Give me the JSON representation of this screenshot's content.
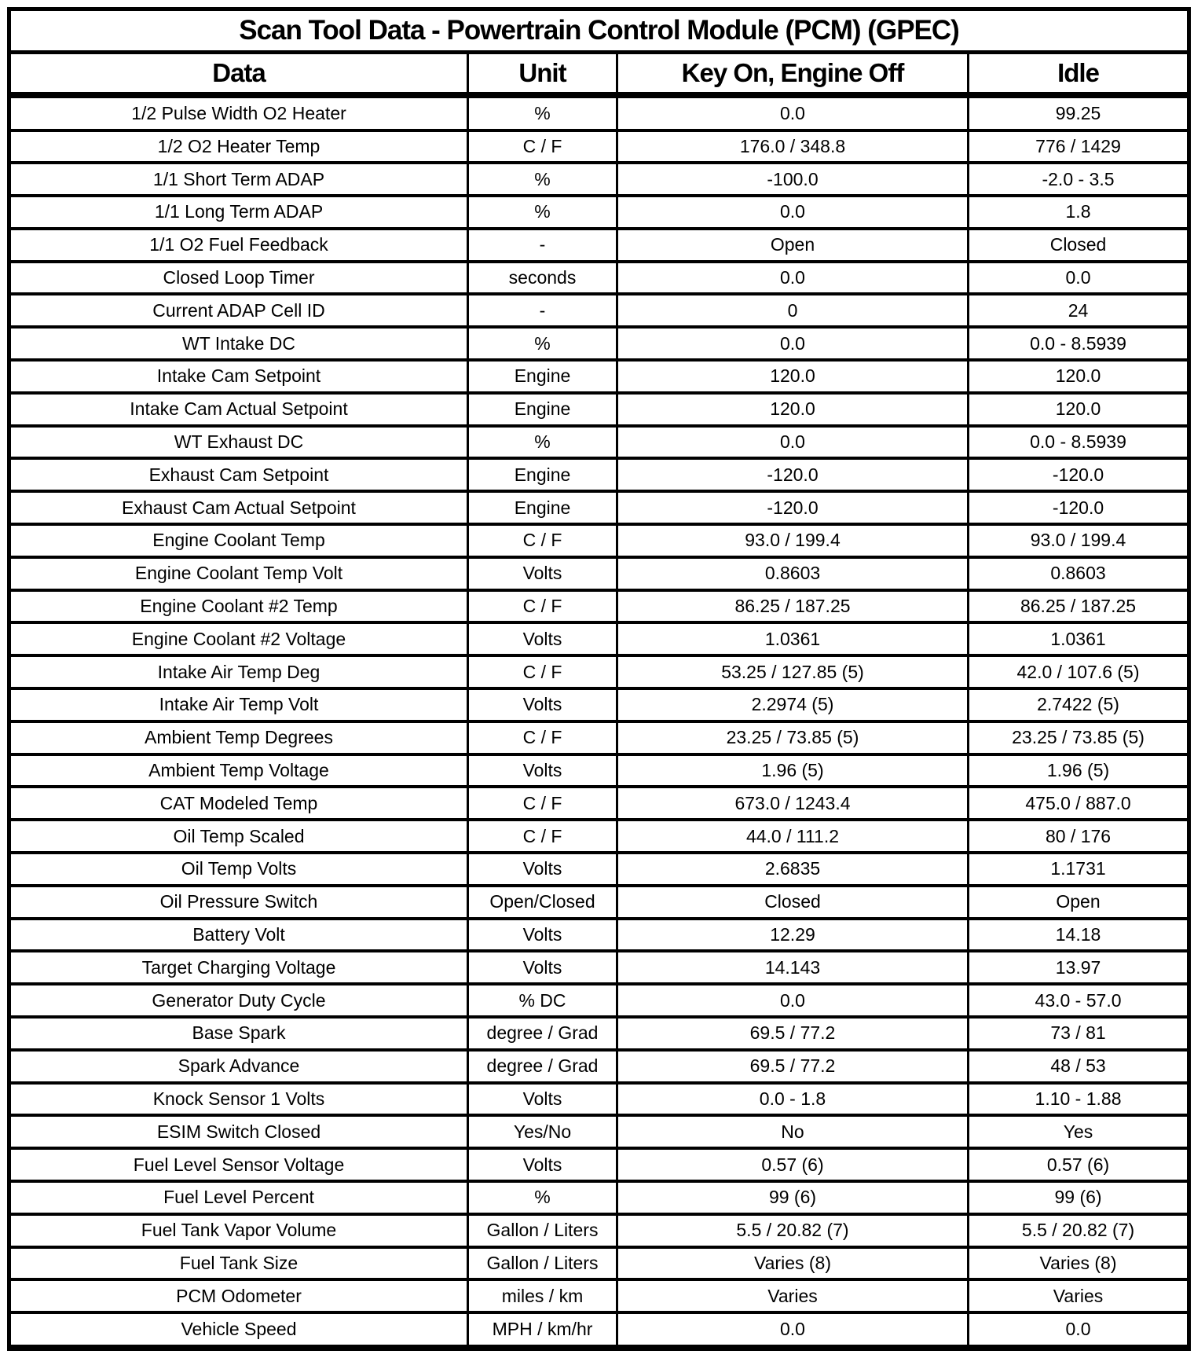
{
  "table": {
    "title": "Scan Tool Data - Powertrain Control Module (PCM) (GPEC)",
    "columns": [
      "Data",
      "Unit",
      "Key On, Engine Off",
      "Idle"
    ],
    "rows": [
      [
        "1/2 Pulse Width O2 Heater",
        "%",
        "0.0",
        "99.25"
      ],
      [
        "1/2 O2 Heater Temp",
        "C / F",
        "176.0 / 348.8",
        "776 / 1429"
      ],
      [
        "1/1 Short Term ADAP",
        "%",
        "-100.0",
        "-2.0 - 3.5"
      ],
      [
        "1/1 Long Term ADAP",
        "%",
        "0.0",
        "1.8"
      ],
      [
        "1/1 O2 Fuel Feedback",
        "-",
        "Open",
        "Closed"
      ],
      [
        "Closed Loop Timer",
        "seconds",
        "0.0",
        "0.0"
      ],
      [
        "Current ADAP Cell ID",
        "-",
        "0",
        "24"
      ],
      [
        "WT Intake DC",
        "%",
        "0.0",
        "0.0 - 8.5939"
      ],
      [
        "Intake Cam Setpoint",
        "Engine",
        "120.0",
        "120.0"
      ],
      [
        "Intake Cam Actual Setpoint",
        "Engine",
        "120.0",
        "120.0"
      ],
      [
        "WT Exhaust DC",
        "%",
        "0.0",
        "0.0 - 8.5939"
      ],
      [
        "Exhaust Cam Setpoint",
        "Engine",
        "-120.0",
        "-120.0"
      ],
      [
        "Exhaust Cam Actual Setpoint",
        "Engine",
        "-120.0",
        "-120.0"
      ],
      [
        "Engine Coolant Temp",
        "C / F",
        "93.0 / 199.4",
        "93.0 / 199.4"
      ],
      [
        "Engine Coolant Temp Volt",
        "Volts",
        "0.8603",
        "0.8603"
      ],
      [
        "Engine Coolant #2 Temp",
        "C / F",
        "86.25 / 187.25",
        "86.25 / 187.25"
      ],
      [
        "Engine Coolant #2 Voltage",
        "Volts",
        "1.0361",
        "1.0361"
      ],
      [
        "Intake Air Temp Deg",
        "C / F",
        "53.25 / 127.85 (5)",
        "42.0 / 107.6 (5)"
      ],
      [
        "Intake Air Temp Volt",
        "Volts",
        "2.2974 (5)",
        "2.7422 (5)"
      ],
      [
        "Ambient Temp Degrees",
        "C / F",
        "23.25 / 73.85 (5)",
        "23.25 / 73.85 (5)"
      ],
      [
        "Ambient Temp Voltage",
        "Volts",
        "1.96 (5)",
        "1.96 (5)"
      ],
      [
        "CAT Modeled Temp",
        "C / F",
        "673.0 / 1243.4",
        "475.0 / 887.0"
      ],
      [
        "Oil Temp Scaled",
        "C / F",
        "44.0 / 111.2",
        "80 / 176"
      ],
      [
        "Oil Temp Volts",
        "Volts",
        "2.6835",
        "1.1731"
      ],
      [
        "Oil Pressure Switch",
        "Open/Closed",
        "Closed",
        "Open"
      ],
      [
        "Battery Volt",
        "Volts",
        "12.29",
        "14.18"
      ],
      [
        "Target Charging Voltage",
        "Volts",
        "14.143",
        "13.97"
      ],
      [
        "Generator Duty Cycle",
        "% DC",
        "0.0",
        "43.0 - 57.0"
      ],
      [
        "Base Spark",
        "degree / Grad",
        "69.5 / 77.2",
        "73 / 81"
      ],
      [
        "Spark Advance",
        "degree / Grad",
        "69.5 / 77.2",
        "48 / 53"
      ],
      [
        "Knock Sensor 1 Volts",
        "Volts",
        "0.0 - 1.8",
        "1.10 - 1.88"
      ],
      [
        "ESIM Switch Closed",
        "Yes/No",
        "No",
        "Yes"
      ],
      [
        "Fuel Level Sensor Voltage",
        "Volts",
        "0.57 (6)",
        "0.57 (6)"
      ],
      [
        "Fuel Level Percent",
        "%",
        "99 (6)",
        "99 (6)"
      ],
      [
        "Fuel Tank Vapor Volume",
        "Gallon / Liters",
        "5.5 / 20.82 (7)",
        "5.5 / 20.82 (7)"
      ],
      [
        "Fuel Tank Size",
        "Gallon / Liters",
        "Varies (8)",
        "Varies (8)"
      ],
      [
        "PCM Odometer",
        "miles / km",
        "Varies",
        "Varies"
      ],
      [
        "Vehicle Speed",
        "MPH / km/hr",
        "0.0",
        "0.0"
      ]
    ]
  },
  "colors": {
    "text": "#000000",
    "border": "#000000",
    "background": "#ffffff"
  }
}
